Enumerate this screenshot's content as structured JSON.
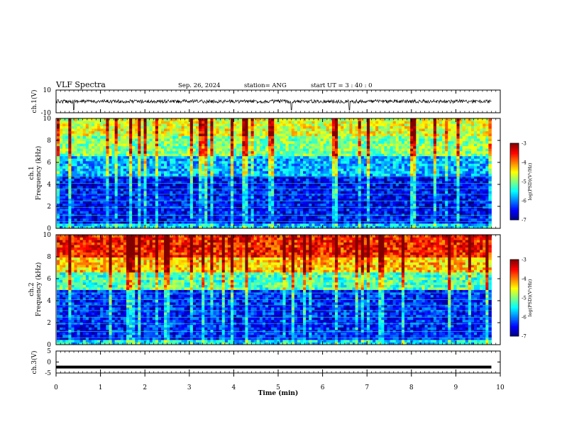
{
  "header": {
    "title": "VLF Spectra",
    "date": "Sep. 26, 2024",
    "station": "station= ANG",
    "start_time": "start  UT =   3  : 40 : 0"
  },
  "colors": {
    "spectrogram_low": "#00007f",
    "spectrogram_mid": "#00ff80",
    "spectrogram_high": "#ff0000",
    "waveform": "#000000"
  },
  "chart_data": [
    {
      "type": "line",
      "name": "ch1-waveform",
      "ylabel": "ch.1(V)",
      "ylim": [
        -10,
        10
      ],
      "yticks": [
        "10",
        "-10"
      ],
      "xlim": [
        0,
        10
      ],
      "approx_level": 0,
      "spikes_at_min": [
        0.4,
        5.3,
        6.6
      ]
    },
    {
      "type": "heatmap",
      "name": "ch1-spectrogram",
      "ylabel_lines": [
        "ch.1",
        "Frequency (kHz)"
      ],
      "ylim": [
        0,
        10
      ],
      "yticks": [
        "0",
        "2",
        "4",
        "6",
        "8",
        "10"
      ],
      "xlim": [
        0,
        10
      ],
      "data_xmax": 9.8,
      "colorbar": {
        "label": "log(PSD)(V²/Hz)",
        "range": [
          -7,
          -3
        ],
        "ticks": [
          "-3",
          "-4",
          "-5",
          "-6",
          "-7"
        ]
      },
      "bands_khz": [
        {
          "from": 0,
          "to": 4.7,
          "level": -6.5
        },
        {
          "from": 4.7,
          "to": 6.5,
          "level": -5.8
        },
        {
          "from": 6.5,
          "to": 8.5,
          "level": -5.0
        },
        {
          "from": 8.5,
          "to": 10,
          "level": -4.6
        }
      ]
    },
    {
      "type": "heatmap",
      "name": "ch2-spectrogram",
      "ylabel_lines": [
        "ch.2",
        "Frequency (kHz)"
      ],
      "ylim": [
        0,
        10
      ],
      "yticks": [
        "0",
        "2",
        "4",
        "6",
        "8",
        "10"
      ],
      "xlim": [
        0,
        10
      ],
      "data_xmax": 9.8,
      "colorbar": {
        "label": "log(PSD)(V²/Hz)",
        "range": [
          -7,
          -3
        ],
        "ticks": [
          "-3",
          "-4",
          "-5",
          "-6",
          "-7"
        ]
      },
      "bands_khz": [
        {
          "from": 0,
          "to": 5.0,
          "level": -6.4
        },
        {
          "from": 5.0,
          "to": 6.5,
          "level": -5.2
        },
        {
          "from": 6.5,
          "to": 8.0,
          "level": -4.3
        },
        {
          "from": 8.0,
          "to": 10,
          "level": -3.6
        }
      ]
    },
    {
      "type": "line",
      "name": "ch3-waveform",
      "ylabel": "ch.3(V)",
      "ylim": [
        -5,
        5
      ],
      "yticks": [
        "5",
        "0",
        "-5"
      ],
      "xlim": [
        0,
        10
      ],
      "approx_level": -2.3
    }
  ],
  "xaxis": {
    "label": "Time  (min)",
    "ticks": [
      "0",
      "1",
      "2",
      "3",
      "4",
      "5",
      "6",
      "7",
      "8",
      "9",
      "10"
    ]
  }
}
